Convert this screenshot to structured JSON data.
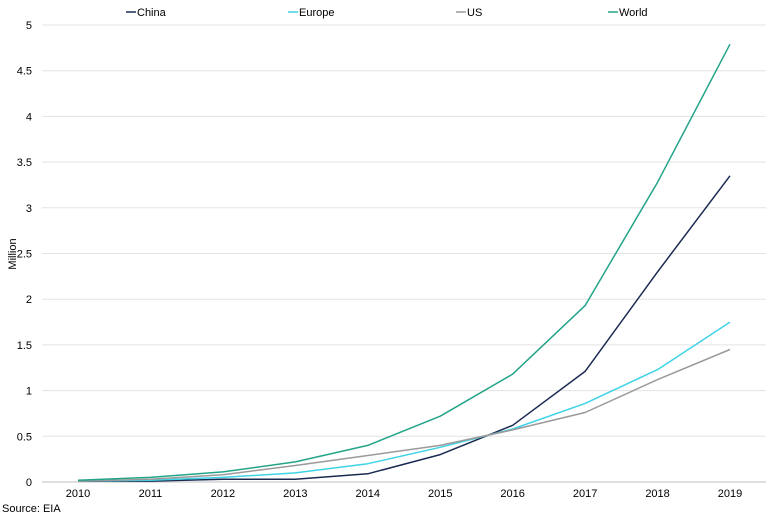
{
  "chart_data": {
    "type": "line",
    "title": "",
    "xlabel": "",
    "ylabel": "Million",
    "categories": [
      "2010",
      "2011",
      "2012",
      "2013",
      "2014",
      "2015",
      "2016",
      "2017",
      "2018",
      "2019"
    ],
    "ylim": [
      0,
      5
    ],
    "yticks": [
      0,
      0.5,
      1,
      1.5,
      2,
      2.5,
      3,
      3.5,
      4,
      4.5,
      5
    ],
    "ytick_labels": [
      "0",
      "0.5",
      "1",
      "1.5",
      "2",
      "2.5",
      "3",
      "3.5",
      "4",
      "4.5",
      "5"
    ],
    "grid": "horizontal",
    "legend_position": "top",
    "series": [
      {
        "name": "China",
        "color": "#1c2a52",
        "values": [
          0.01,
          0.01,
          0.03,
          0.03,
          0.09,
          0.3,
          0.62,
          1.21,
          2.3,
          3.35
        ]
      },
      {
        "name": "Europe",
        "color": "#3fd3e6",
        "values": [
          0.01,
          0.02,
          0.05,
          0.1,
          0.2,
          0.38,
          0.58,
          0.86,
          1.23,
          1.75
        ]
      },
      {
        "name": "US",
        "color": "#9a9a9a",
        "values": [
          0.01,
          0.03,
          0.08,
          0.18,
          0.29,
          0.4,
          0.57,
          0.76,
          1.12,
          1.45
        ]
      },
      {
        "name": "World",
        "color": "#23a489",
        "values": [
          0.02,
          0.05,
          0.11,
          0.22,
          0.4,
          0.72,
          1.18,
          1.93,
          3.28,
          4.79
        ]
      }
    ]
  },
  "source": "Source: EIA"
}
